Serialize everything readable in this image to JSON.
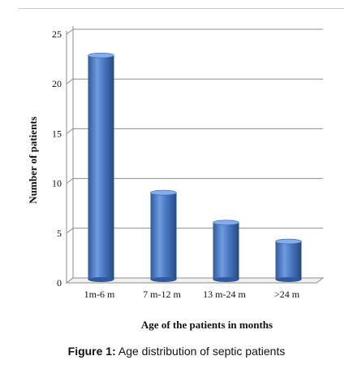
{
  "chart_data": {
    "type": "bar",
    "categories": [
      "1m-6 m",
      "7 m-12 m",
      "13 m-24 m",
      ">24 m"
    ],
    "values": [
      22.7,
      8.9,
      5.9,
      4
    ],
    "ylim": [
      0,
      25
    ],
    "yticks": [
      0,
      5,
      10,
      15,
      20,
      25
    ],
    "ylabel": "Number of patients",
    "xlabel": "Age of the patients in months",
    "grid": true,
    "legend": "none",
    "bar_color": "#4a78c2"
  },
  "caption": {
    "prefix": "Figure 1:",
    "text": " Age distribution of septic patients"
  }
}
